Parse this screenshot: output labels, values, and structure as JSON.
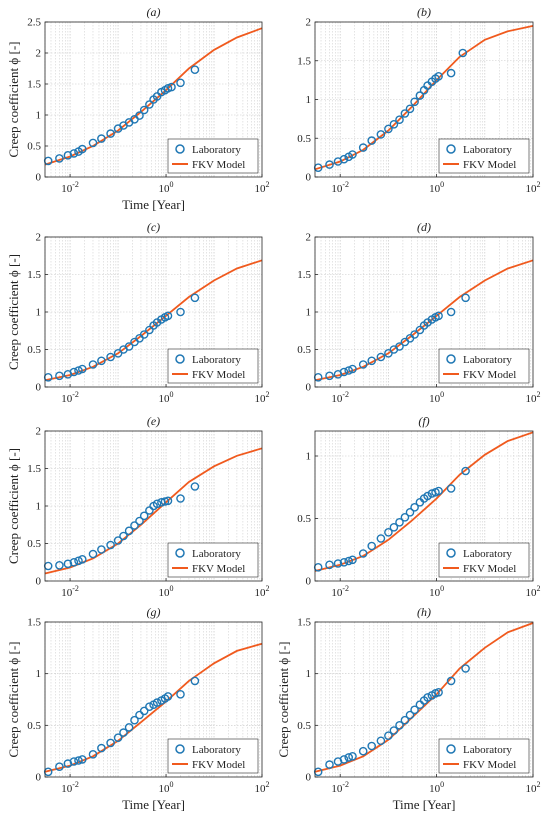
{
  "figure": {
    "y_label": "Creep coefficient ϕ [-]",
    "x_label": "Time [Year]",
    "colors": {
      "laboratory": "#1f77b4",
      "model": "#f05a1e",
      "grid": "#c8c8c8",
      "axis": "#262626"
    },
    "legend_position": "bottom-right"
  },
  "chart_data": [
    {
      "type": "scatter",
      "title": "(a)",
      "xscale": "log",
      "xlim": [
        0.003,
        100
      ],
      "ylim": [
        0,
        2.5
      ],
      "yticks": [
        0,
        0.5,
        1,
        1.5,
        2,
        2.5
      ],
      "xticks": [
        "10^-2",
        "10^0",
        "10^2"
      ],
      "grid": true,
      "xlabel": "Time [Year]",
      "ylabel": "Creep coefficient ϕ [-]",
      "legend": [
        "Laboratory",
        "FKV Model"
      ],
      "series": [
        {
          "name": "Laboratory",
          "kind": "markers",
          "x": [
            0.0035,
            0.006,
            0.009,
            0.012,
            0.015,
            0.018,
            0.03,
            0.045,
            0.07,
            0.1,
            0.13,
            0.17,
            0.22,
            0.28,
            0.35,
            0.45,
            0.55,
            0.65,
            0.8,
            0.95,
            1.1,
            1.3,
            2,
            4
          ],
          "y": [
            0.26,
            0.3,
            0.35,
            0.38,
            0.41,
            0.45,
            0.55,
            0.62,
            0.7,
            0.78,
            0.83,
            0.88,
            0.93,
            0.99,
            1.08,
            1.17,
            1.25,
            1.3,
            1.37,
            1.4,
            1.43,
            1.45,
            1.52,
            1.73
          ]
        },
        {
          "name": "FKV Model",
          "kind": "line",
          "x": [
            0.003,
            0.01,
            0.03,
            0.1,
            0.3,
            1,
            3,
            10,
            30,
            100
          ],
          "y": [
            0.2,
            0.33,
            0.5,
            0.75,
            1.05,
            1.4,
            1.75,
            2.05,
            2.25,
            2.4
          ]
        }
      ]
    },
    {
      "type": "scatter",
      "title": "(b)",
      "xscale": "log",
      "xlim": [
        0.003,
        100
      ],
      "ylim": [
        0,
        2
      ],
      "yticks": [
        0,
        0.5,
        1,
        1.5,
        2
      ],
      "xticks": [
        "10^-2",
        "10^0",
        "10^2"
      ],
      "grid": true,
      "xlabel": "",
      "ylabel": "",
      "legend": [
        "Laboratory",
        "FKV Model"
      ],
      "series": [
        {
          "name": "Laboratory",
          "kind": "markers",
          "x": [
            0.0035,
            0.006,
            0.009,
            0.012,
            0.015,
            0.018,
            0.03,
            0.045,
            0.07,
            0.1,
            0.13,
            0.17,
            0.22,
            0.28,
            0.35,
            0.45,
            0.55,
            0.65,
            0.8,
            0.95,
            1.1,
            2,
            3.5
          ],
          "y": [
            0.12,
            0.16,
            0.2,
            0.23,
            0.26,
            0.29,
            0.38,
            0.47,
            0.55,
            0.62,
            0.68,
            0.74,
            0.82,
            0.88,
            0.97,
            1.05,
            1.12,
            1.18,
            1.23,
            1.27,
            1.3,
            1.34,
            1.6
          ]
        },
        {
          "name": "FKV Model",
          "kind": "line",
          "x": [
            0.003,
            0.01,
            0.03,
            0.1,
            0.3,
            1,
            3,
            10,
            30,
            100
          ],
          "y": [
            0.1,
            0.2,
            0.35,
            0.6,
            0.9,
            1.25,
            1.55,
            1.77,
            1.88,
            1.95
          ]
        }
      ]
    },
    {
      "type": "scatter",
      "title": "(c)",
      "xscale": "log",
      "xlim": [
        0.003,
        100
      ],
      "ylim": [
        0,
        2
      ],
      "yticks": [
        0,
        0.5,
        1,
        1.5,
        2
      ],
      "xticks": [
        "10^-2",
        "10^0",
        "10^2"
      ],
      "grid": true,
      "xlabel": "",
      "ylabel": "Creep coefficient ϕ [-]",
      "legend": [
        "Laboratory",
        "FKV Model"
      ],
      "series": [
        {
          "name": "Laboratory",
          "kind": "markers",
          "x": [
            0.0035,
            0.006,
            0.009,
            0.012,
            0.015,
            0.018,
            0.03,
            0.045,
            0.07,
            0.1,
            0.13,
            0.17,
            0.22,
            0.28,
            0.35,
            0.45,
            0.55,
            0.65,
            0.8,
            0.95,
            1.1,
            2,
            4
          ],
          "y": [
            0.13,
            0.15,
            0.17,
            0.2,
            0.22,
            0.24,
            0.3,
            0.35,
            0.4,
            0.45,
            0.5,
            0.54,
            0.6,
            0.65,
            0.7,
            0.76,
            0.82,
            0.86,
            0.9,
            0.93,
            0.95,
            1.0,
            1.19
          ]
        },
        {
          "name": "FKV Model",
          "kind": "line",
          "x": [
            0.003,
            0.01,
            0.03,
            0.1,
            0.3,
            1,
            3,
            10,
            30,
            100
          ],
          "y": [
            0.09,
            0.16,
            0.27,
            0.45,
            0.68,
            0.95,
            1.2,
            1.42,
            1.58,
            1.69
          ]
        }
      ]
    },
    {
      "type": "scatter",
      "title": "(d)",
      "xscale": "log",
      "xlim": [
        0.003,
        100
      ],
      "ylim": [
        0,
        2
      ],
      "yticks": [
        0,
        0.5,
        1,
        1.5,
        2
      ],
      "xticks": [
        "10^-2",
        "10^0",
        "10^2"
      ],
      "grid": true,
      "xlabel": "",
      "ylabel": "",
      "legend": [
        "Laboratory",
        "FKV Model"
      ],
      "series": [
        {
          "name": "Laboratory",
          "kind": "markers",
          "x": [
            0.0035,
            0.006,
            0.009,
            0.012,
            0.015,
            0.018,
            0.03,
            0.045,
            0.07,
            0.1,
            0.13,
            0.17,
            0.22,
            0.28,
            0.35,
            0.45,
            0.55,
            0.65,
            0.8,
            0.95,
            1.1,
            2,
            4
          ],
          "y": [
            0.13,
            0.15,
            0.17,
            0.2,
            0.22,
            0.24,
            0.3,
            0.35,
            0.4,
            0.45,
            0.5,
            0.54,
            0.6,
            0.65,
            0.7,
            0.76,
            0.82,
            0.86,
            0.9,
            0.93,
            0.95,
            1.0,
            1.19
          ]
        },
        {
          "name": "FKV Model",
          "kind": "line",
          "x": [
            0.003,
            0.01,
            0.03,
            0.1,
            0.3,
            1,
            3,
            10,
            30,
            100
          ],
          "y": [
            0.09,
            0.16,
            0.27,
            0.45,
            0.68,
            0.95,
            1.2,
            1.42,
            1.58,
            1.69
          ]
        }
      ]
    },
    {
      "type": "scatter",
      "title": "(e)",
      "xscale": "log",
      "xlim": [
        0.003,
        100
      ],
      "ylim": [
        0,
        2
      ],
      "yticks": [
        0,
        0.5,
        1,
        1.5,
        2
      ],
      "xticks": [
        "10^-2",
        "10^0",
        "10^2"
      ],
      "grid": true,
      "xlabel": "",
      "ylabel": "Creep coefficient ϕ [-]",
      "legend": [
        "Laboratory",
        "FKV Model"
      ],
      "series": [
        {
          "name": "Laboratory",
          "kind": "markers",
          "x": [
            0.0035,
            0.006,
            0.009,
            0.012,
            0.015,
            0.018,
            0.03,
            0.045,
            0.07,
            0.1,
            0.13,
            0.17,
            0.22,
            0.28,
            0.35,
            0.45,
            0.55,
            0.65,
            0.8,
            0.95,
            1.1,
            2,
            4
          ],
          "y": [
            0.2,
            0.21,
            0.23,
            0.25,
            0.27,
            0.29,
            0.36,
            0.42,
            0.48,
            0.54,
            0.6,
            0.67,
            0.74,
            0.8,
            0.87,
            0.94,
            1.0,
            1.03,
            1.05,
            1.06,
            1.07,
            1.1,
            1.26
          ]
        },
        {
          "name": "FKV Model",
          "kind": "line",
          "x": [
            0.003,
            0.01,
            0.03,
            0.1,
            0.3,
            1,
            3,
            10,
            30,
            100
          ],
          "y": [
            0.1,
            0.18,
            0.3,
            0.5,
            0.75,
            1.05,
            1.32,
            1.53,
            1.67,
            1.77
          ]
        }
      ]
    },
    {
      "type": "scatter",
      "title": "(f)",
      "xscale": "log",
      "xlim": [
        0.003,
        100
      ],
      "ylim": [
        0,
        1.2
      ],
      "yticks": [
        0,
        0.5,
        1
      ],
      "xticks": [
        "10^-2",
        "10^0",
        "10^2"
      ],
      "grid": true,
      "xlabel": "",
      "ylabel": "",
      "legend": [
        "Laboratory",
        "FKV Model"
      ],
      "series": [
        {
          "name": "Laboratory",
          "kind": "markers",
          "x": [
            0.0035,
            0.006,
            0.009,
            0.012,
            0.015,
            0.018,
            0.03,
            0.045,
            0.07,
            0.1,
            0.13,
            0.17,
            0.22,
            0.28,
            0.35,
            0.45,
            0.55,
            0.65,
            0.8,
            0.95,
            1.1,
            2,
            4
          ],
          "y": [
            0.11,
            0.13,
            0.14,
            0.15,
            0.16,
            0.17,
            0.22,
            0.28,
            0.34,
            0.39,
            0.43,
            0.47,
            0.51,
            0.55,
            0.59,
            0.63,
            0.66,
            0.68,
            0.7,
            0.71,
            0.72,
            0.74,
            0.88
          ]
        },
        {
          "name": "FKV Model",
          "kind": "line",
          "x": [
            0.003,
            0.01,
            0.03,
            0.1,
            0.3,
            1,
            3,
            10,
            30,
            100
          ],
          "y": [
            0.08,
            0.13,
            0.2,
            0.33,
            0.48,
            0.66,
            0.85,
            1.01,
            1.12,
            1.19
          ]
        }
      ]
    },
    {
      "type": "scatter",
      "title": "(g)",
      "xscale": "log",
      "xlim": [
        0.003,
        100
      ],
      "ylim": [
        0,
        1.5
      ],
      "yticks": [
        0,
        0.5,
        1,
        1.5
      ],
      "xticks": [
        "10^-2",
        "10^0",
        "10^2"
      ],
      "grid": true,
      "xlabel": "Time [Year]",
      "ylabel": "Creep coefficient ϕ [-]",
      "legend": [
        "Laboratory",
        "FKV Model"
      ],
      "series": [
        {
          "name": "Laboratory",
          "kind": "markers",
          "x": [
            0.0035,
            0.006,
            0.009,
            0.012,
            0.015,
            0.018,
            0.03,
            0.045,
            0.07,
            0.1,
            0.13,
            0.17,
            0.22,
            0.28,
            0.35,
            0.45,
            0.55,
            0.65,
            0.8,
            0.95,
            1.1,
            2,
            4
          ],
          "y": [
            0.05,
            0.1,
            0.13,
            0.15,
            0.16,
            0.17,
            0.22,
            0.28,
            0.33,
            0.38,
            0.43,
            0.48,
            0.55,
            0.6,
            0.64,
            0.68,
            0.7,
            0.72,
            0.74,
            0.76,
            0.78,
            0.8,
            0.93
          ]
        },
        {
          "name": "FKV Model",
          "kind": "line",
          "x": [
            0.003,
            0.01,
            0.03,
            0.1,
            0.3,
            1,
            3,
            10,
            30,
            100
          ],
          "y": [
            0.05,
            0.11,
            0.2,
            0.35,
            0.53,
            0.73,
            0.93,
            1.1,
            1.22,
            1.29
          ]
        }
      ]
    },
    {
      "type": "scatter",
      "title": "(h)",
      "xscale": "log",
      "xlim": [
        0.003,
        100
      ],
      "ylim": [
        0,
        1.5
      ],
      "yticks": [
        0,
        0.5,
        1,
        1.5
      ],
      "xticks": [
        "10^-2",
        "10^0",
        "10^2"
      ],
      "grid": true,
      "xlabel": "Time [Year]",
      "ylabel": "Creep coefficient ϕ [-]",
      "legend": [
        "Laboratory",
        "FKV Model"
      ],
      "series": [
        {
          "name": "Laboratory",
          "kind": "markers",
          "x": [
            0.0035,
            0.006,
            0.009,
            0.012,
            0.015,
            0.018,
            0.03,
            0.045,
            0.07,
            0.1,
            0.13,
            0.17,
            0.22,
            0.28,
            0.35,
            0.45,
            0.55,
            0.65,
            0.8,
            0.95,
            1.1,
            2,
            4
          ],
          "y": [
            0.05,
            0.12,
            0.15,
            0.17,
            0.19,
            0.2,
            0.25,
            0.3,
            0.35,
            0.4,
            0.45,
            0.5,
            0.55,
            0.6,
            0.65,
            0.7,
            0.74,
            0.77,
            0.79,
            0.81,
            0.82,
            0.93,
            1.05
          ]
        },
        {
          "name": "FKV Model",
          "kind": "line",
          "x": [
            0.003,
            0.01,
            0.03,
            0.1,
            0.3,
            1,
            3,
            10,
            30,
            100
          ],
          "y": [
            0.05,
            0.11,
            0.2,
            0.36,
            0.57,
            0.8,
            1.05,
            1.25,
            1.4,
            1.49
          ]
        }
      ]
    }
  ]
}
